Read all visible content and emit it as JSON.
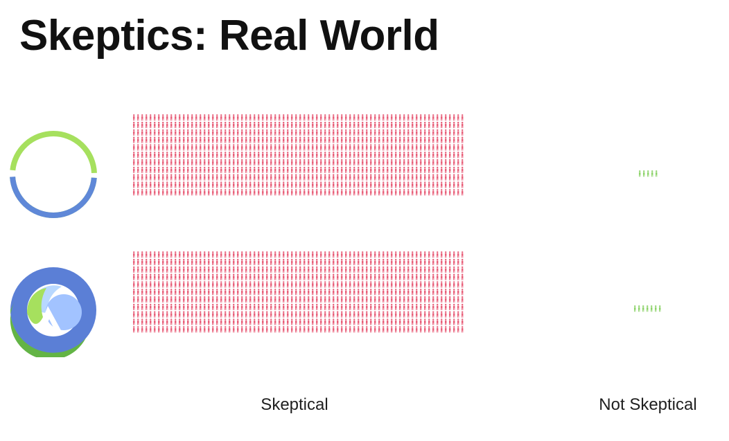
{
  "title": "Skeptics: Real World",
  "chart_data": {
    "type": "pictogram",
    "categories": [
      "Skeptical",
      "Not Skeptical"
    ],
    "series": [
      {
        "logo_icon": "clojure-ring-logo-icon",
        "values": [
          880,
          5
        ]
      },
      {
        "logo_icon": "clojure-logo-icon",
        "values": [
          880,
          7
        ]
      }
    ],
    "colors": {
      "Skeptical": "#e8607a",
      "Not Skeptical": "#8ed36b"
    }
  }
}
